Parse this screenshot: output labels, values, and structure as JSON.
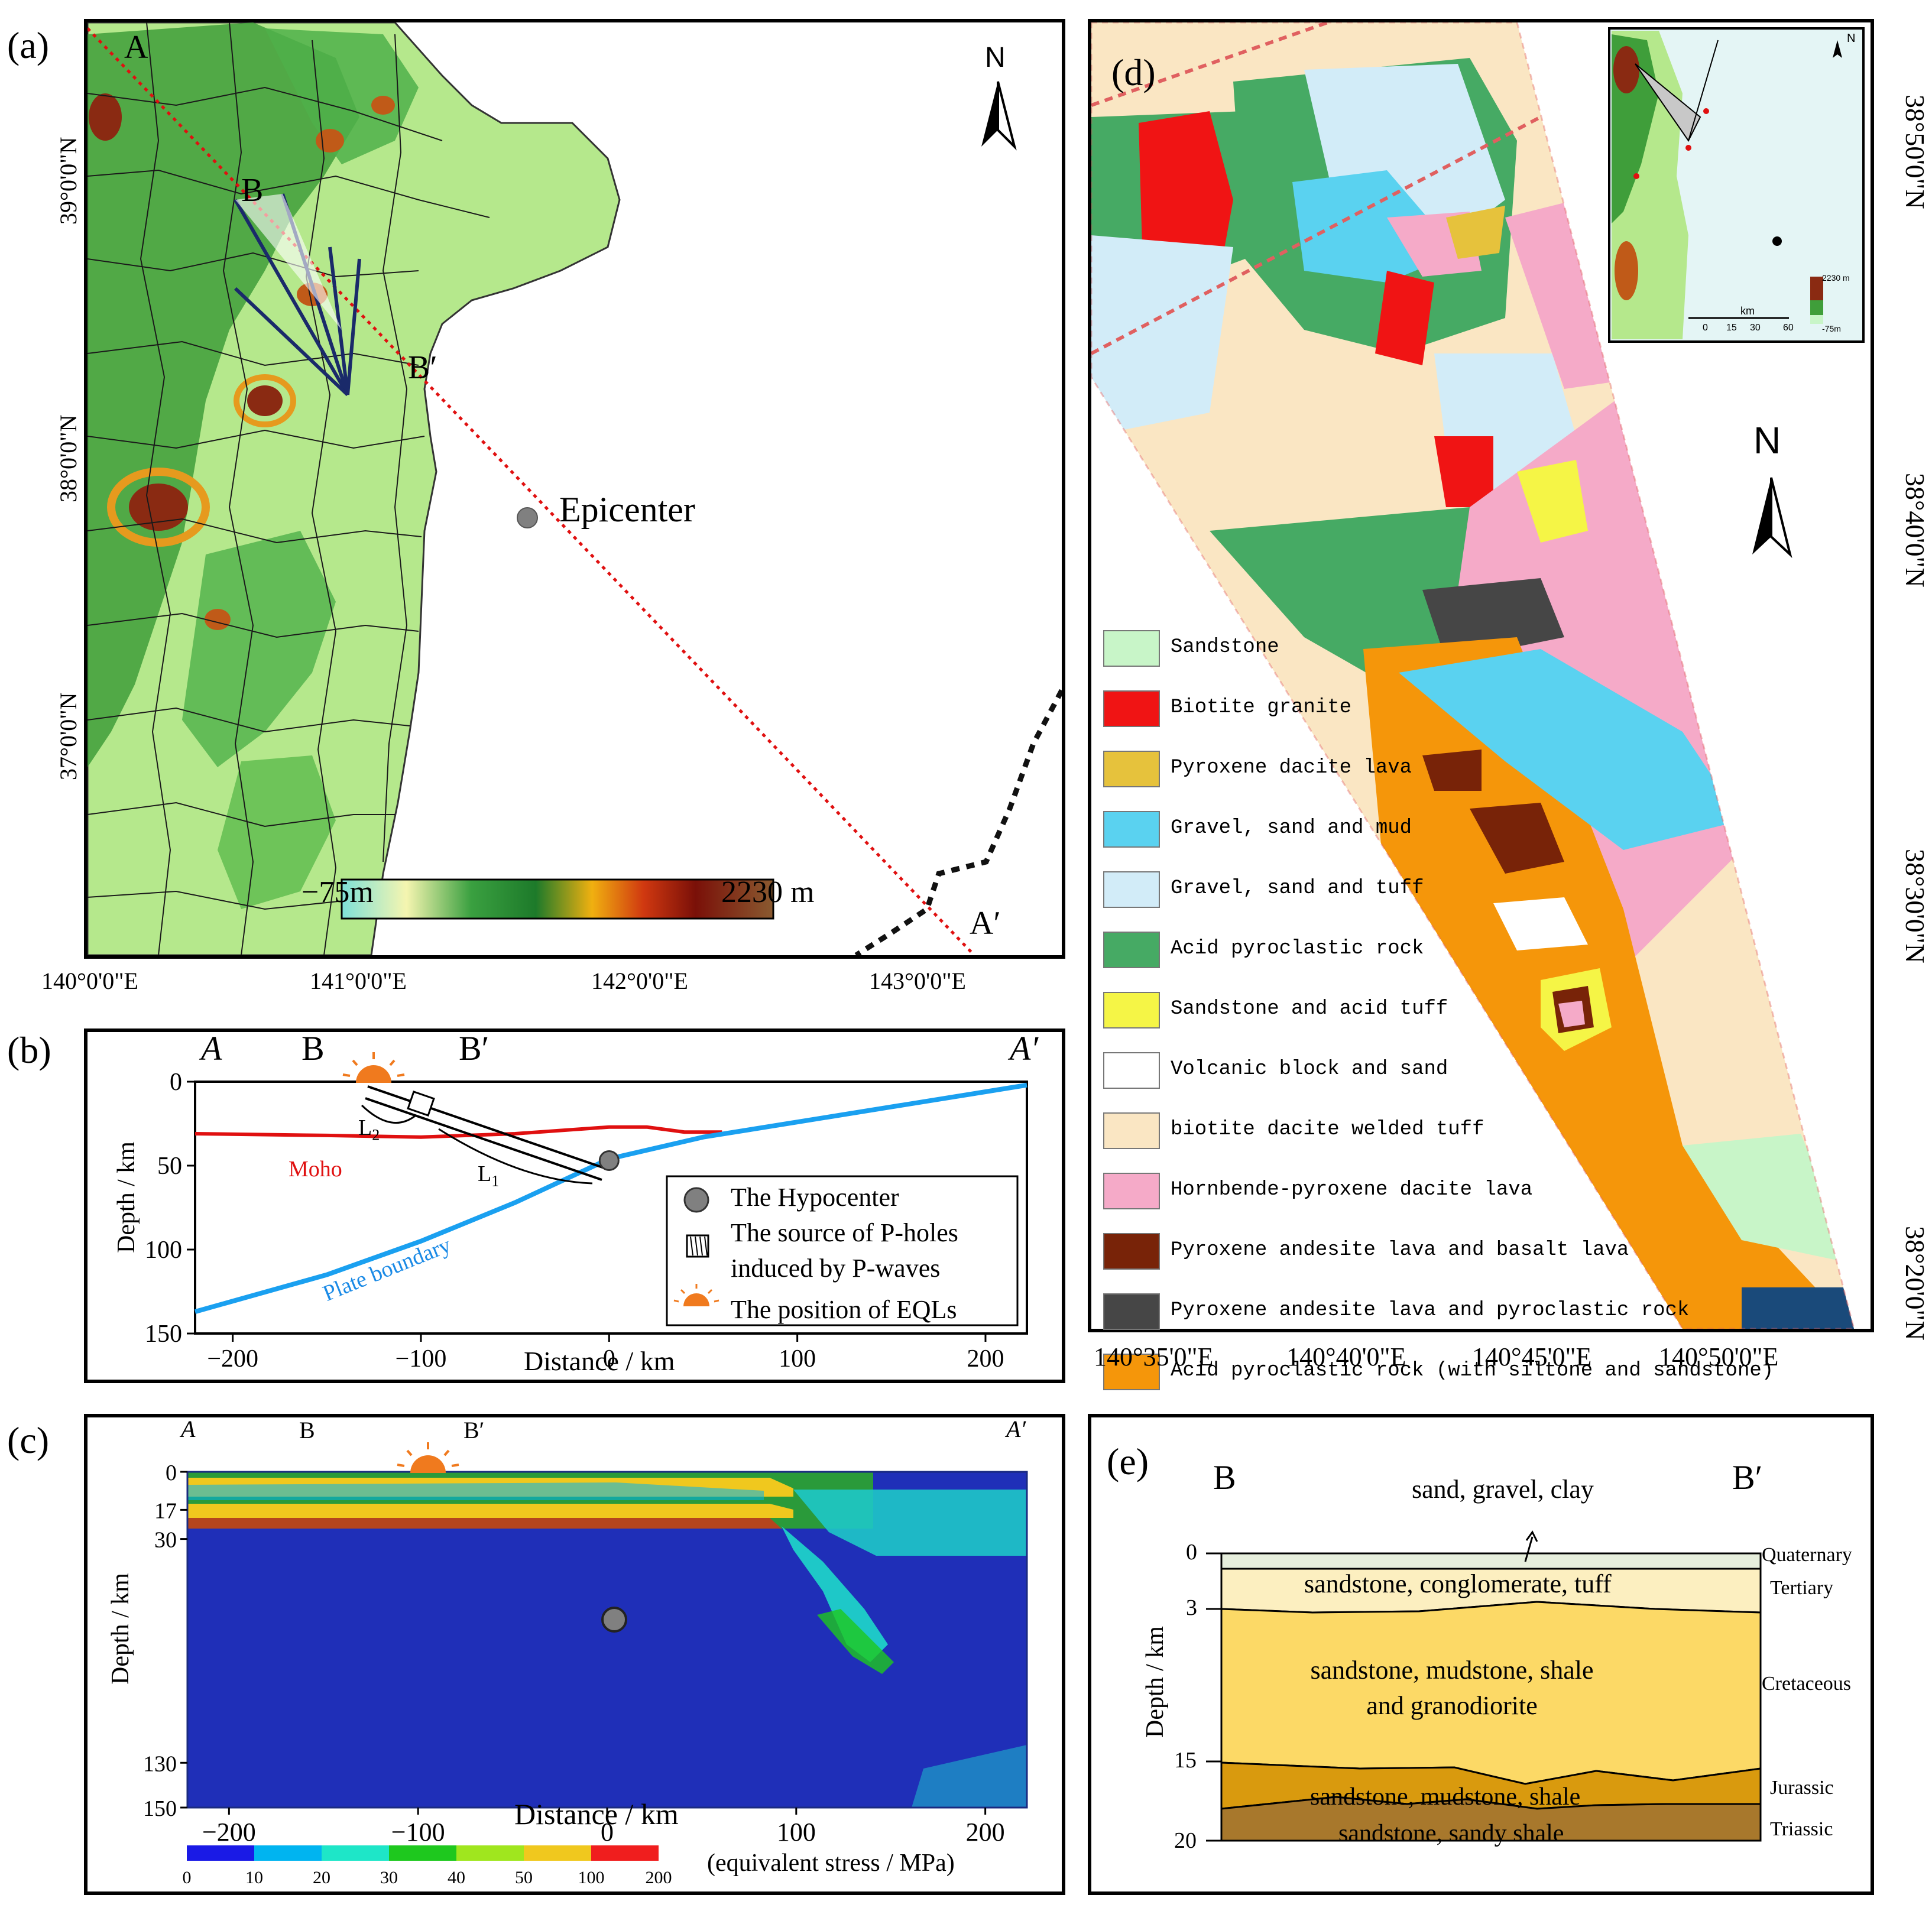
{
  "panel_a": {
    "label": "(a)",
    "point_A": "A",
    "point_A_prime": "A′",
    "point_B": "B",
    "point_B_prime": "B′",
    "epicenter_label": "Epicenter",
    "north_label": "N",
    "colorbar_min": "−75m",
    "colorbar_max": "2230 m",
    "lon_ticks": [
      "140°0'0\"E",
      "141°0'0\"E",
      "142°0'0\"E",
      "143°0'0\"E"
    ],
    "lat_ticks": [
      "39°0'0\"N",
      "38°0'0\"N",
      "37°0'0\"N"
    ],
    "colors": {
      "lowland": "#b5e88c",
      "forest": "#3f9e3a",
      "mountain": "#8a2a12"
    }
  },
  "panel_b": {
    "label": "(b)",
    "point_A": "A",
    "point_B": "B",
    "point_B_prime": "B′",
    "point_A_prime": "A′",
    "ylabel": "Depth / km",
    "xlabel": "Distance / km",
    "y_ticks": [
      "0",
      "50",
      "100",
      "150"
    ],
    "x_ticks": [
      "−200",
      "−100",
      "0",
      "100",
      "200"
    ],
    "moho_label": "Moho",
    "plate_label": "Plate boundary",
    "L1": "L",
    "L1_sub": "1",
    "L2": "L",
    "L2_sub": "2",
    "legend": [
      "The Hypocenter",
      "The source of P-holes",
      "induced by P-waves",
      "The position of EQLs"
    ],
    "chart_data": {
      "type": "line",
      "xlabel": "Distance / km",
      "ylabel": "Depth / km",
      "xlim": [
        -220,
        222
      ],
      "ylim": [
        150,
        0
      ],
      "series": [
        {
          "name": "Moho",
          "x": [
            -220,
            -150,
            -100,
            -50,
            0,
            20,
            40,
            60
          ],
          "y": [
            31,
            32,
            33,
            31,
            27,
            27,
            30,
            30
          ]
        },
        {
          "name": "Plate boundary",
          "x": [
            -220,
            -150,
            -100,
            -50,
            0,
            50,
            100,
            150,
            200,
            222
          ],
          "y": [
            137,
            115,
            95,
            72,
            46,
            33,
            24,
            15,
            6,
            2
          ]
        }
      ],
      "hypocenter": {
        "x": 0,
        "y": 47
      }
    }
  },
  "panel_c": {
    "label": "(c)",
    "point_A": "A",
    "point_B": "B",
    "point_B_prime": "B′",
    "point_A_prime": "A′",
    "ylabel": "Depth / km",
    "xlabel": "Distance / km",
    "y_ticks": [
      "0",
      "17",
      "30",
      "130",
      "150"
    ],
    "x_ticks": [
      "−200",
      "−100",
      "0",
      "100",
      "200"
    ],
    "colorbar_ticks": [
      "0",
      "10",
      "20",
      "30",
      "40",
      "50",
      "100",
      "200"
    ],
    "colorbar_label": "(equivalent stress / MPa)",
    "colorbar_colors": [
      "#1a1ae6",
      "#00b4f0",
      "#1ee6c8",
      "#1ec81e",
      "#a0e61e",
      "#f0c81e",
      "#f01e1e"
    ]
  },
  "panel_d": {
    "label": "(d)",
    "north_label": "N",
    "lon_ticks": [
      "140°35'0\"E",
      "140°40'0\"E",
      "140°45'0\"E",
      "140°50'0\"E"
    ],
    "lat_ticks": [
      "38°50'0\"N",
      "38°40'0\"N",
      "38°30'0\"N",
      "38°20'0\"N"
    ],
    "inset": {
      "north": "N",
      "scale_label": "km",
      "scale_ticks": [
        "0",
        "15",
        "30",
        "60"
      ],
      "elev_max": "2230 m",
      "elev_min": "-75m"
    },
    "legend": [
      {
        "label": "Sandstone",
        "color": "#c8f5c8"
      },
      {
        "label": "Biotite granite",
        "color": "#f01414"
      },
      {
        "label": "Pyroxene dacite lava",
        "color": "#e6c23c"
      },
      {
        "label": "Gravel, sand and mud",
        "color": "#5ad2f0"
      },
      {
        "label": "Gravel, sand and tuff",
        "color": "#d2ecf8"
      },
      {
        "label": "Acid pyroclastic rock",
        "color": "#46aa64"
      },
      {
        "label": "Sandstone and acid tuff",
        "color": "#f5f546"
      },
      {
        "label": "Volcanic block and sand",
        "color": "#ffffff"
      },
      {
        "label": "biotite dacite welded tuff",
        "color": "#fae6c3"
      },
      {
        "label": "Hornbende-pyroxene dacite lava",
        "color": "#f5aac8"
      },
      {
        "label": "Pyroxene andesite lava and basalt lava",
        "color": "#782308"
      },
      {
        "label": "Pyroxene andesite lava and pyroclastic rock",
        "color": "#464646"
      },
      {
        "label": "Acid pyroclastic rock (with siltone and sandstone)",
        "color": "#f5960a"
      }
    ]
  },
  "panel_e": {
    "label": "(e)",
    "point_B": "B",
    "point_B_prime": "B′",
    "ylabel": "Depth / km",
    "y_ticks": [
      "0",
      "3",
      "15",
      "20"
    ],
    "top_note": "sand, gravel, clay",
    "layers": [
      {
        "period": "Quaternary",
        "lithology": "",
        "color": "#e6eedc"
      },
      {
        "period": "Tertiary",
        "lithology": "sandstone, conglomerate, tuff",
        "color": "#fcefc0"
      },
      {
        "period": "Cretaceous",
        "lithology": "sandstone, mudstone, shale",
        "lithology2": "and granodiorite",
        "color": "#fcd966"
      },
      {
        "period": "Jurassic",
        "lithology": "sandstone, mudstone, shale",
        "color": "#d99a0e"
      },
      {
        "period": "Triassic",
        "lithology": "sandstone, sandy shale",
        "color": "#a8782c"
      }
    ]
  }
}
